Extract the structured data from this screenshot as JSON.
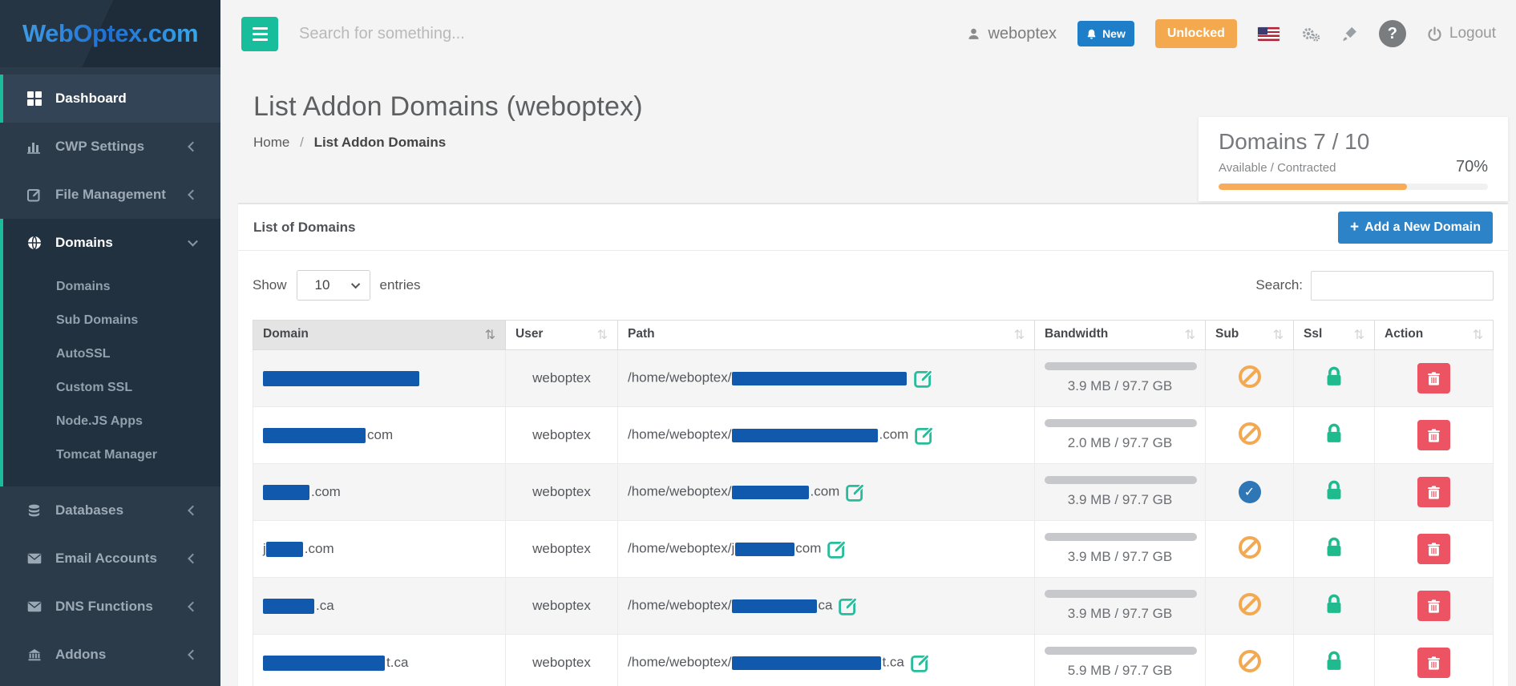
{
  "brand": {
    "logo_text": "WebOptex.com"
  },
  "topbar": {
    "search_placeholder": "Search for something...",
    "username": "weboptex",
    "new_badge_label": "New",
    "unlocked_label": "Unlocked",
    "logout_label": "Logout",
    "help_label": "?"
  },
  "sidebar": {
    "items": [
      {
        "label": "Dashboard",
        "active": true
      },
      {
        "label": "CWP Settings"
      },
      {
        "label": "File Management"
      },
      {
        "label": "Domains",
        "expanded": true
      },
      {
        "label": "Databases"
      },
      {
        "label": "Email Accounts"
      },
      {
        "label": "DNS Functions"
      },
      {
        "label": "Addons"
      }
    ],
    "domains_children": [
      "Domains",
      "Sub Domains",
      "AutoSSL",
      "Custom SSL",
      "Node.JS Apps",
      "Tomcat Manager"
    ]
  },
  "page": {
    "title": "List Addon Domains (weboptex)",
    "breadcrumb_home": "Home",
    "breadcrumb_sep": "/",
    "breadcrumb_current": "List Addon Domains"
  },
  "domains_card": {
    "title": "Domains 7 / 10",
    "subtitle": "Available / Contracted",
    "percent_label": "70%",
    "percent_value": 70
  },
  "panel": {
    "title": "List of Domains",
    "add_button_plus": "+",
    "add_button_label": "Add a New Domain",
    "show_label": "Show",
    "page_size": "10",
    "entries_label": "entries",
    "search_label": "Search:"
  },
  "table": {
    "columns": [
      "Domain",
      "User",
      "Path",
      "Bandwidth",
      "Sub",
      "Ssl",
      "Action"
    ],
    "sort_icon": "⇅",
    "rows": [
      {
        "domain_prefix": "",
        "domain_suffix": "",
        "user": "weboptex",
        "path_prefix": "/home/weboptex/",
        "path_suffix": "",
        "bandwidth": "3.9 MB / 97.7 GB",
        "sub": "blocked",
        "ssl": "locked"
      },
      {
        "domain_prefix": "",
        "domain_suffix": "com",
        "user": "weboptex",
        "path_prefix": "/home/weboptex/",
        "path_suffix": ".com",
        "bandwidth": "2.0 MB / 97.7 GB",
        "sub": "blocked",
        "ssl": "locked"
      },
      {
        "domain_prefix": "",
        "domain_suffix": ".com",
        "user": "weboptex",
        "path_prefix": "/home/weboptex/",
        "path_suffix": ".com",
        "bandwidth": "3.9 MB / 97.7 GB",
        "sub": "enabled",
        "ssl": "locked"
      },
      {
        "domain_prefix": "j",
        "domain_suffix": ".com",
        "user": "weboptex",
        "path_prefix": "/home/weboptex/j",
        "path_suffix": "com",
        "bandwidth": "3.9 MB / 97.7 GB",
        "sub": "blocked",
        "ssl": "locked"
      },
      {
        "domain_prefix": "",
        "domain_suffix": ".ca",
        "user": "weboptex",
        "path_prefix": "/home/weboptex/",
        "path_suffix": "ca",
        "bandwidth": "3.9 MB / 97.7 GB",
        "sub": "blocked",
        "ssl": "locked"
      },
      {
        "domain_prefix": "",
        "domain_suffix": "t.ca",
        "user": "weboptex",
        "path_prefix": "/home/weboptex/",
        "path_suffix": "t.ca",
        "bandwidth": "5.9 MB / 97.7 GB",
        "sub": "blocked",
        "ssl": "locked"
      }
    ],
    "check_glyph": "✓"
  },
  "colors": {
    "accent_green": "#1abc9c",
    "badge_blue": "#1e7ec8",
    "button_blue": "#2d83c7",
    "warning_orange": "#f8ac59",
    "danger_red": "#ed5565",
    "lock_green": "#1fbb8e",
    "redaction_blue": "#1159ac"
  }
}
